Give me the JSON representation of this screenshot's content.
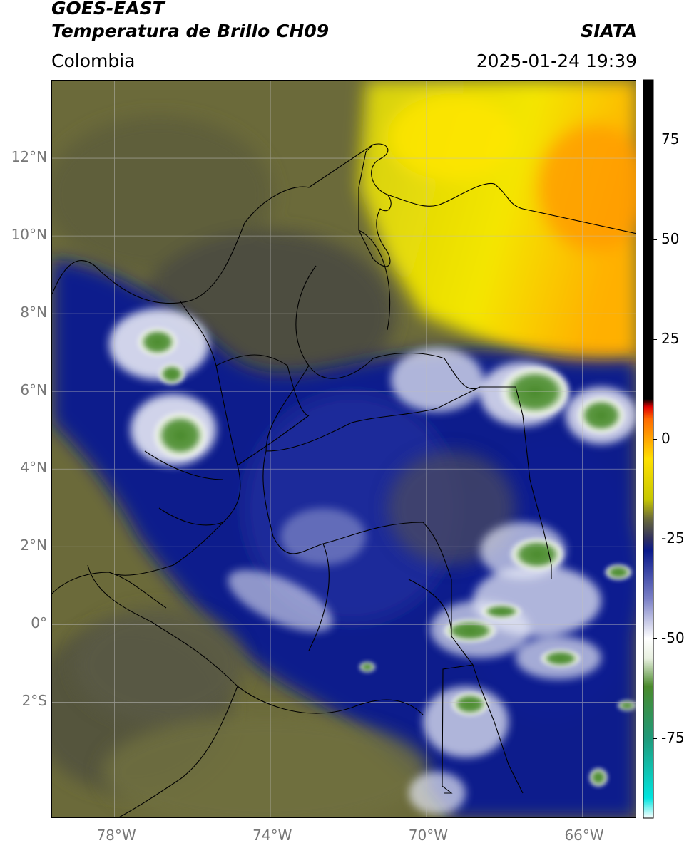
{
  "header": {
    "satellite": "GOES-EAST",
    "product": "Temperatura de Brillo CH09",
    "region": "Colombia",
    "agency": "SIATA",
    "datetime": "2025-01-24 19:39"
  },
  "map": {
    "lon_range": [
      -79.6,
      -64.6
    ],
    "lat_range": [
      -5.0,
      14.0
    ],
    "x_ticks": [
      {
        "lon": -78,
        "label": "78°W"
      },
      {
        "lon": -74,
        "label": "74°W"
      },
      {
        "lon": -70,
        "label": "70°W"
      },
      {
        "lon": -66,
        "label": "66°W"
      }
    ],
    "y_ticks": [
      {
        "lat": 12,
        "label": "12°N"
      },
      {
        "lat": 10,
        "label": "10°N"
      },
      {
        "lat": 8,
        "label": "8°N"
      },
      {
        "lat": 6,
        "label": "6°N"
      },
      {
        "lat": 4,
        "label": "4°N"
      },
      {
        "lat": 2,
        "label": "2°N"
      },
      {
        "lat": 0,
        "label": "0°"
      },
      {
        "lat": -2,
        "label": "2°S"
      }
    ],
    "gridlines": true
  },
  "colorbar": {
    "range": [
      -95,
      90
    ],
    "ticks": [
      {
        "value": 75,
        "label": "75"
      },
      {
        "value": 50,
        "label": "50"
      },
      {
        "value": 25,
        "label": "25"
      },
      {
        "value": 0,
        "label": "0"
      },
      {
        "value": -25,
        "label": "-25"
      },
      {
        "value": -50,
        "label": "-50"
      },
      {
        "value": -75,
        "label": "-75"
      }
    ],
    "stops": [
      {
        "value": -95,
        "color": "#ffffff"
      },
      {
        "value": -90,
        "color": "#00e5e0"
      },
      {
        "value": -75,
        "color": "#1f9a7a"
      },
      {
        "value": -62,
        "color": "#4a8a2c"
      },
      {
        "value": -55,
        "color": "#e8f0e0"
      },
      {
        "value": -50,
        "color": "#ffffff"
      },
      {
        "value": -40,
        "color": "#7a7fc6"
      },
      {
        "value": -28,
        "color": "#0a1a8c"
      },
      {
        "value": -25,
        "color": "#303060"
      },
      {
        "value": -20,
        "color": "#6a6a3a"
      },
      {
        "value": -15,
        "color": "#c8c800"
      },
      {
        "value": -5,
        "color": "#ffe000"
      },
      {
        "value": 5,
        "color": "#ff6a00"
      },
      {
        "value": 8,
        "color": "#e00000"
      },
      {
        "value": 10,
        "color": "#000000"
      },
      {
        "value": 90,
        "color": "#000000"
      }
    ]
  }
}
